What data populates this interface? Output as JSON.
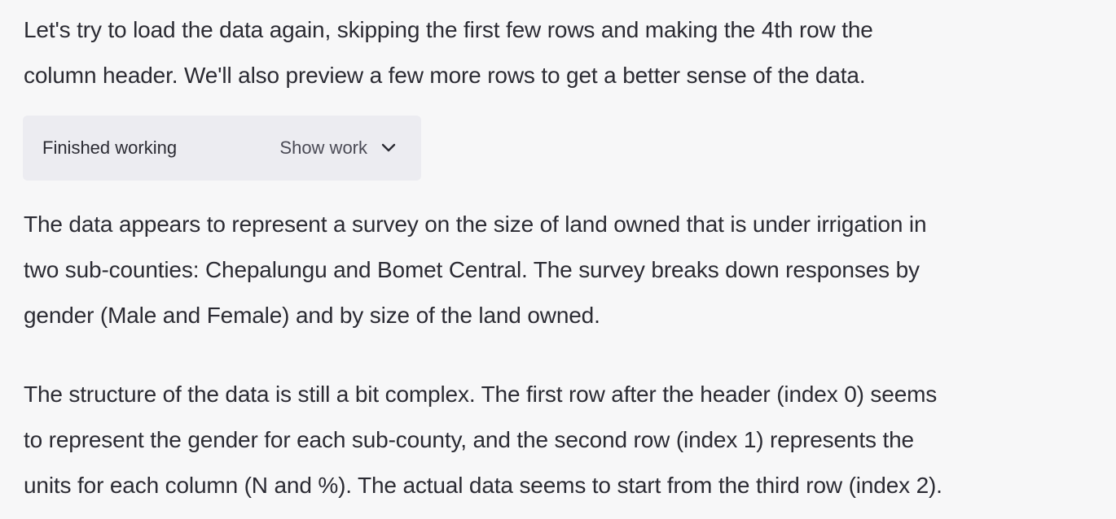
{
  "intro": {
    "lines": [
      "Let's try to load the data again, skipping the first few rows and making the 4th row the",
      "column header. We'll also preview a few more rows to get a better sense of the data."
    ]
  },
  "work_panel": {
    "status": "Finished working",
    "toggle_label": "Show work",
    "toggle_icon": "chevron-down-icon"
  },
  "summary": {
    "lines": [
      "The data appears to represent a survey on the size of land owned that is under irrigation in",
      "two sub-counties: Chepalungu and Bomet Central. The survey breaks down responses by",
      "gender (Male and Female) and by size of the land owned."
    ]
  },
  "structure_note": {
    "lines": [
      "The structure of the data is still a bit complex. The first row after the header (index 0) seems",
      "to represent the gender for each sub-county, and the second row (index 1) represents the",
      "units for each column (N and %). The actual data seems to start from the third row (index 2)."
    ]
  }
}
